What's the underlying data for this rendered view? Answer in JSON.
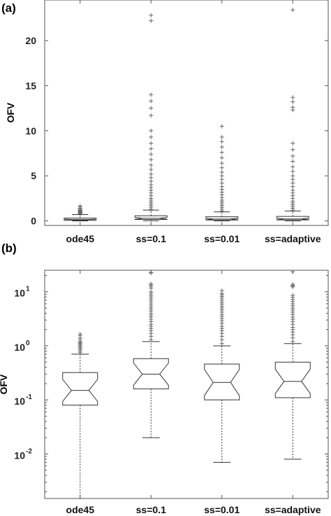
{
  "chart_data": [
    {
      "type": "boxplot",
      "panel_label": "(a)",
      "ylabel": "OFV",
      "yscale": "linear",
      "ylim": [
        -0.5,
        24.5
      ],
      "yticks": [
        0,
        5,
        10,
        15,
        20
      ],
      "ytick_labels": [
        "0",
        "5",
        "10",
        "15",
        "20"
      ],
      "categories": [
        "ode45",
        "ss=0.1",
        "ss=0.01",
        "ss=adaptive"
      ],
      "boxes": [
        {
          "q1": 0.08,
          "median": 0.15,
          "q3": 0.32,
          "whisker_low": 0.0,
          "whisker_high": 0.7,
          "notched": true
        },
        {
          "q1": 0.16,
          "median": 0.3,
          "q3": 0.58,
          "whisker_low": 0.02,
          "whisker_high": 1.2,
          "notched": true
        },
        {
          "q1": 0.1,
          "median": 0.21,
          "q3": 0.46,
          "whisker_low": 0.007,
          "whisker_high": 1.0,
          "notched": true
        },
        {
          "q1": 0.11,
          "median": 0.22,
          "q3": 0.5,
          "whisker_low": 0.008,
          "whisker_high": 1.1,
          "notched": true
        }
      ],
      "outliers": [
        [
          0.75,
          0.8,
          0.85,
          0.9,
          0.95,
          1.0,
          1.05,
          1.1,
          1.15,
          1.2,
          1.3,
          1.4,
          1.55,
          1.65
        ],
        [
          1.3,
          1.5,
          1.7,
          1.9,
          2.1,
          2.3,
          2.5,
          2.8,
          3.1,
          3.4,
          3.7,
          4.0,
          4.4,
          4.8,
          5.2,
          5.7,
          6.2,
          6.8,
          7.4,
          8.0,
          8.6,
          9.3,
          10.0,
          11.7,
          12.5,
          13.3,
          14.0,
          22.2,
          22.8
        ],
        [
          1.1,
          1.3,
          1.5,
          1.7,
          1.9,
          2.1,
          2.3,
          2.6,
          2.9,
          3.2,
          3.5,
          3.8,
          4.2,
          4.6,
          5.0,
          5.4,
          5.9,
          6.4,
          7.0,
          7.6,
          8.2,
          8.8,
          9.3,
          10.5
        ],
        [
          1.2,
          1.4,
          1.6,
          1.8,
          2.0,
          2.2,
          2.5,
          2.8,
          3.1,
          3.4,
          3.8,
          4.2,
          4.6,
          5.0,
          5.5,
          6.0,
          6.6,
          7.2,
          7.9,
          8.6,
          12.3,
          12.6,
          13.2,
          13.7,
          23.4
        ]
      ]
    },
    {
      "type": "boxplot",
      "panel_label": "(b)",
      "ylabel": "OFV",
      "yscale": "log",
      "ylim": [
        0.0015,
        25
      ],
      "yticks": [
        0.01,
        0.1,
        1,
        10
      ],
      "ytick_labels": [
        {
          "base": "10",
          "exp": "-2"
        },
        {
          "base": "10",
          "exp": "-1"
        },
        {
          "base": "10",
          "exp": "0"
        },
        {
          "base": "10",
          "exp": "1"
        }
      ],
      "categories": [
        "ode45",
        "ss=0.1",
        "ss=0.01",
        "ss=adaptive"
      ],
      "boxes": [
        {
          "q1": 0.08,
          "median": 0.15,
          "q3": 0.32,
          "whisker_low": 0.0015,
          "whisker_high": 0.7,
          "notched": true
        },
        {
          "q1": 0.16,
          "median": 0.3,
          "q3": 0.58,
          "whisker_low": 0.02,
          "whisker_high": 1.2,
          "notched": true
        },
        {
          "q1": 0.1,
          "median": 0.21,
          "q3": 0.46,
          "whisker_low": 0.007,
          "whisker_high": 1.0,
          "notched": true
        },
        {
          "q1": 0.11,
          "median": 0.22,
          "q3": 0.5,
          "whisker_low": 0.008,
          "whisker_high": 1.1,
          "notched": true
        }
      ],
      "outliers": [
        [
          0.75,
          0.8,
          0.85,
          0.9,
          0.95,
          1.0,
          1.05,
          1.1,
          1.15,
          1.2,
          1.3,
          1.4,
          1.55,
          1.65
        ],
        [
          1.3,
          1.5,
          1.7,
          1.9,
          2.1,
          2.3,
          2.5,
          2.8,
          3.1,
          3.4,
          3.7,
          4.0,
          4.4,
          4.8,
          5.2,
          5.7,
          6.2,
          6.8,
          7.4,
          8.0,
          8.6,
          9.3,
          10.0,
          11.7,
          12.5,
          13.3,
          14.0,
          22.2,
          22.8
        ],
        [
          1.1,
          1.3,
          1.5,
          1.7,
          1.9,
          2.1,
          2.3,
          2.6,
          2.9,
          3.2,
          3.5,
          3.8,
          4.2,
          4.6,
          5.0,
          5.4,
          5.9,
          6.4,
          7.0,
          7.6,
          8.2,
          8.8,
          9.3,
          10.5
        ],
        [
          1.2,
          1.4,
          1.6,
          1.8,
          2.0,
          2.2,
          2.5,
          2.8,
          3.1,
          3.4,
          3.8,
          4.2,
          4.6,
          5.0,
          5.5,
          6.0,
          6.6,
          7.2,
          7.9,
          8.6,
          12.3,
          12.6,
          13.2,
          13.7,
          23.4
        ]
      ]
    }
  ]
}
